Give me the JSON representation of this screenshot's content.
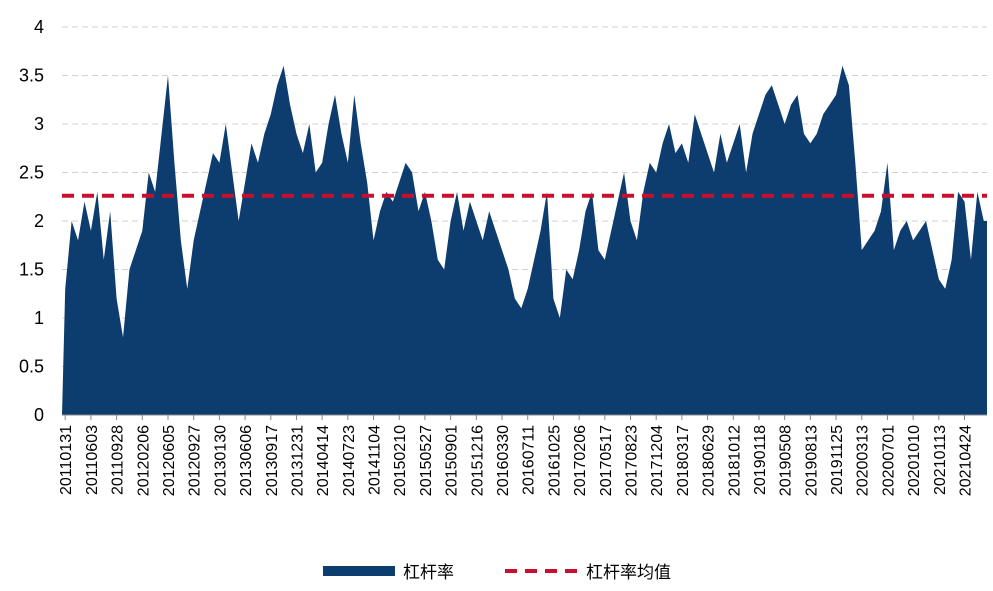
{
  "chart_data": {
    "type": "area",
    "categories": [
      "20110131",
      null,
      null,
      null,
      "20110603",
      null,
      null,
      null,
      "20110928",
      null,
      null,
      null,
      "20120206",
      null,
      null,
      null,
      "20120605",
      null,
      null,
      null,
      "20120927",
      null,
      null,
      null,
      "20130130",
      null,
      null,
      null,
      "20130606",
      null,
      null,
      null,
      "20130917",
      null,
      null,
      null,
      "20131231",
      null,
      null,
      null,
      "20140414",
      null,
      null,
      null,
      "20140723",
      null,
      null,
      null,
      "20141104",
      null,
      null,
      null,
      "20150210",
      null,
      null,
      null,
      "20150527",
      null,
      null,
      null,
      "20150901",
      null,
      null,
      null,
      "20151216",
      null,
      null,
      null,
      "20160330",
      null,
      null,
      null,
      "20160711",
      null,
      null,
      null,
      "20161025",
      null,
      null,
      null,
      "20170206",
      null,
      null,
      null,
      "20170517",
      null,
      null,
      null,
      "20170823",
      null,
      null,
      null,
      "20171204",
      null,
      null,
      null,
      "20180317",
      null,
      null,
      null,
      "20180629",
      null,
      null,
      null,
      "20181012",
      null,
      null,
      null,
      "20190118",
      null,
      null,
      null,
      "20190508",
      null,
      null,
      null,
      "20190813",
      null,
      null,
      null,
      "20191125",
      null,
      null,
      null,
      "20200313",
      null,
      null,
      null,
      "20200701",
      null,
      null,
      null,
      "20201010",
      null,
      null,
      null,
      "20210113",
      null,
      null,
      null,
      "20210424",
      null,
      null,
      null
    ],
    "series": [
      {
        "name": "杠杆率",
        "color": "#0d3c6e",
        "values": [
          1.3,
          2.0,
          1.8,
          2.2,
          1.9,
          2.3,
          1.6,
          2.1,
          1.2,
          0.8,
          1.5,
          1.7,
          1.9,
          2.5,
          2.3,
          2.9,
          3.5,
          2.6,
          1.8,
          1.3,
          1.8,
          2.1,
          2.4,
          2.7,
          2.6,
          3.0,
          2.5,
          2.0,
          2.4,
          2.8,
          2.6,
          2.9,
          3.1,
          3.4,
          3.6,
          3.2,
          2.9,
          2.7,
          3.0,
          2.5,
          2.6,
          3.0,
          3.3,
          2.9,
          2.6,
          3.3,
          2.8,
          2.4,
          1.8,
          2.1,
          2.3,
          2.2,
          2.4,
          2.6,
          2.5,
          2.1,
          2.3,
          2.0,
          1.6,
          1.5,
          2.0,
          2.3,
          1.9,
          2.2,
          2.0,
          1.8,
          2.1,
          1.9,
          1.7,
          1.5,
          1.2,
          1.1,
          1.3,
          1.6,
          1.9,
          2.3,
          1.2,
          1.0,
          1.5,
          1.4,
          1.7,
          2.1,
          2.3,
          1.7,
          1.6,
          1.9,
          2.2,
          2.5,
          2.0,
          1.8,
          2.3,
          2.6,
          2.5,
          2.8,
          3.0,
          2.7,
          2.8,
          2.6,
          3.1,
          2.9,
          2.7,
          2.5,
          2.9,
          2.6,
          2.8,
          3.0,
          2.5,
          2.9,
          3.1,
          3.3,
          3.4,
          3.2,
          3.0,
          3.2,
          3.3,
          2.9,
          2.8,
          2.9,
          3.1,
          3.2,
          3.3,
          3.6,
          3.4,
          2.6,
          1.7,
          1.8,
          1.9,
          2.1,
          2.6,
          1.7,
          1.9,
          2.0,
          1.8,
          1.9,
          2.0,
          1.7,
          1.4,
          1.3,
          1.6,
          2.3,
          2.2,
          1.6,
          2.3,
          2.0
        ]
      },
      {
        "name": "杠杆率均值",
        "color": "#c8102e",
        "value": 2.26,
        "dashed": true
      }
    ],
    "ylim": [
      0,
      4
    ],
    "yticks": [
      0,
      0.5,
      1,
      1.5,
      2,
      2.5,
      3,
      3.5,
      4
    ],
    "grid": true
  }
}
